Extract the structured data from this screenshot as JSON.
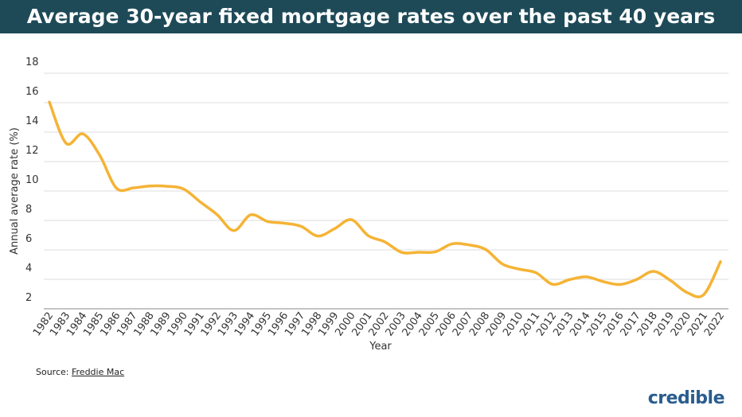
{
  "chart_data": {
    "type": "line",
    "title": "Average 30-year fixed mortgage rates over the past 40 years",
    "x_label": "Year",
    "y_label": "Annual average rate (%)",
    "categories": [
      "1982",
      "1983",
      "1984",
      "1985",
      "1986",
      "1987",
      "1988",
      "1989",
      "1990",
      "1991",
      "1992",
      "1993",
      "1994",
      "1995",
      "1996",
      "1997",
      "1998",
      "1999",
      "2000",
      "2001",
      "2002",
      "2003",
      "2004",
      "2005",
      "2006",
      "2007",
      "2008",
      "2009",
      "2010",
      "2011",
      "2012",
      "2013",
      "2014",
      "2015",
      "2016",
      "2017",
      "2018",
      "2019",
      "2020",
      "2021",
      "2022"
    ],
    "series": [
      {
        "name": "Rate",
        "color": "#f5b335",
        "values": [
          16.04,
          13.24,
          13.88,
          12.43,
          10.19,
          10.21,
          10.34,
          10.32,
          10.13,
          9.25,
          8.39,
          7.31,
          8.38,
          7.93,
          7.81,
          7.6,
          6.94,
          7.44,
          8.05,
          6.97,
          6.54,
          5.83,
          5.84,
          5.87,
          6.41,
          6.34,
          6.03,
          5.04,
          4.69,
          4.45,
          3.66,
          3.98,
          4.17,
          3.85,
          3.65,
          3.99,
          4.54,
          3.94,
          3.11,
          2.96,
          5.2
        ]
      }
    ],
    "ylim": [
      2,
      18
    ],
    "yticks": [
      2,
      4,
      6,
      8,
      10,
      12,
      14,
      16,
      18
    ],
    "grid": true
  },
  "source": {
    "label": "Source:",
    "link": "Freddie Mac"
  },
  "logo": "credible"
}
